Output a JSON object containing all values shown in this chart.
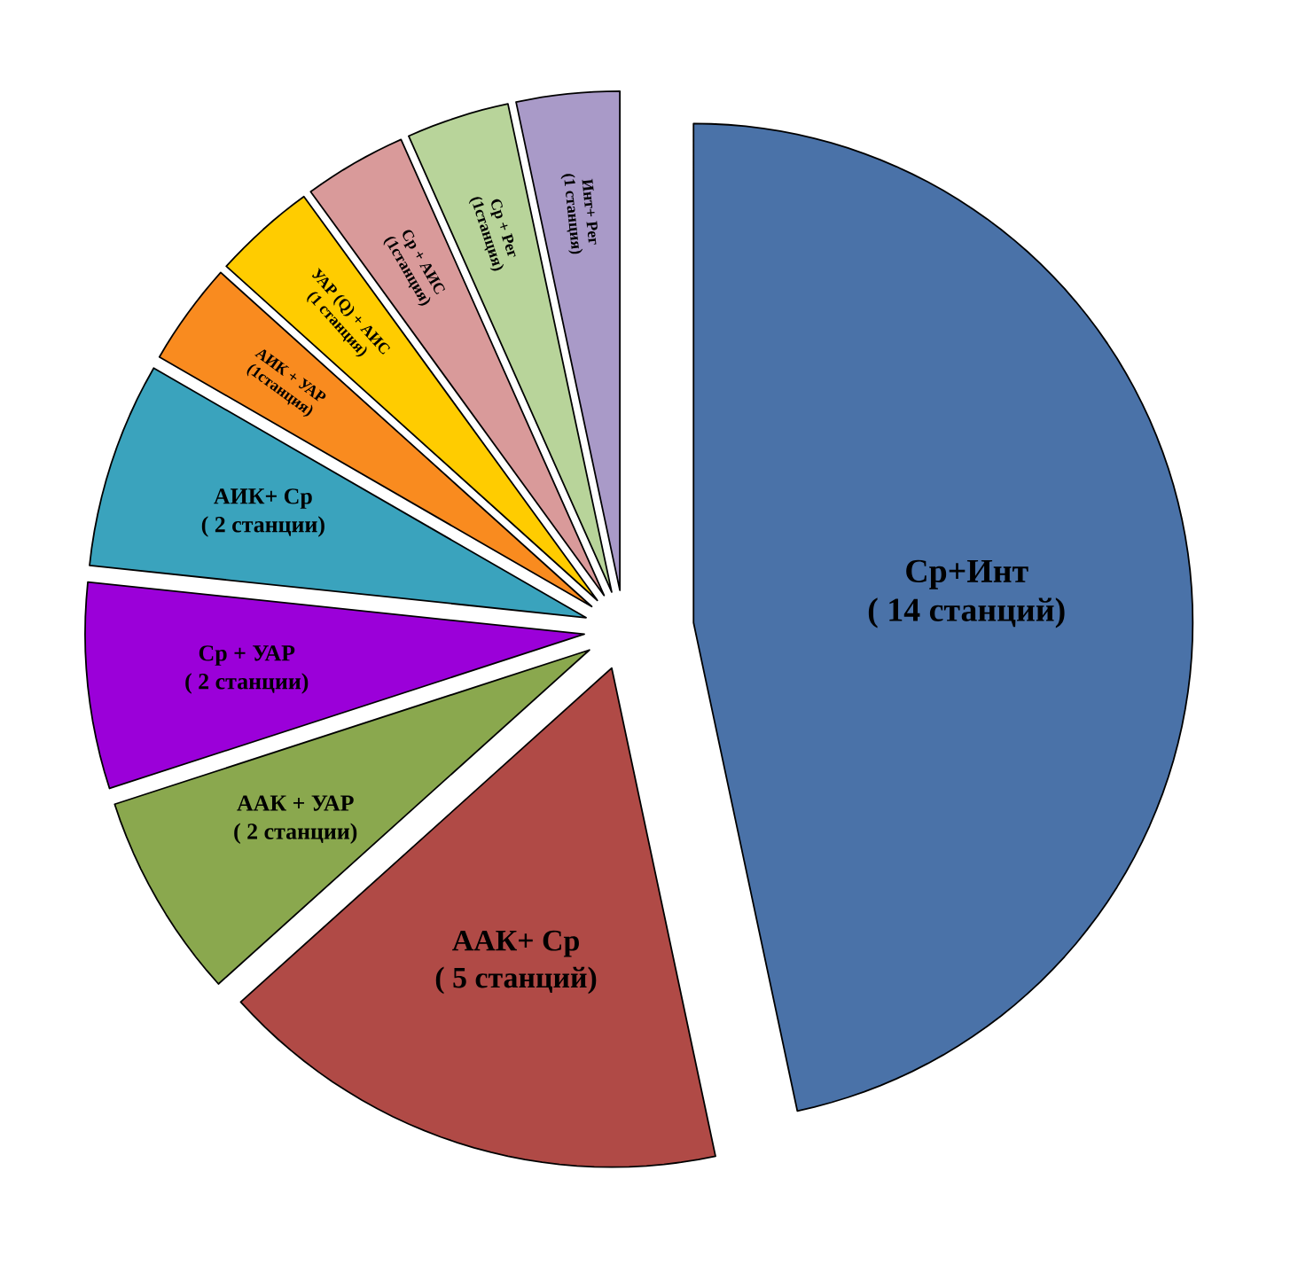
{
  "chart_data": {
    "type": "pie",
    "categories": [
      "Ср+Инт",
      "ААК+ Ср",
      "ААК + УАР",
      "Ср + УАР",
      "АИК+ Ср",
      "АИК + УАР",
      "УАР (Q) + АИС",
      "Ср + АИС",
      "Ср + Рег",
      "Инт+ Рег"
    ],
    "values": [
      14,
      5,
      2,
      2,
      2,
      1,
      1,
      1,
      1,
      1
    ],
    "value_labels": [
      "( 14 станций)",
      "( 5 станций)",
      "( 2 станции)",
      "( 2 станции)",
      "( 2 станции)",
      "(1станция)",
      "(1 станция)",
      "(1станция)",
      "(1станция)",
      "(1 станция)"
    ],
    "colors": [
      "#4a72a8",
      "#b04a46",
      "#8aa84e",
      "#9b00d9",
      "#3aa3bd",
      "#f98b1f",
      "#ffcc00",
      "#d99a9a",
      "#b8d49a",
      "#a99ac8"
    ]
  }
}
